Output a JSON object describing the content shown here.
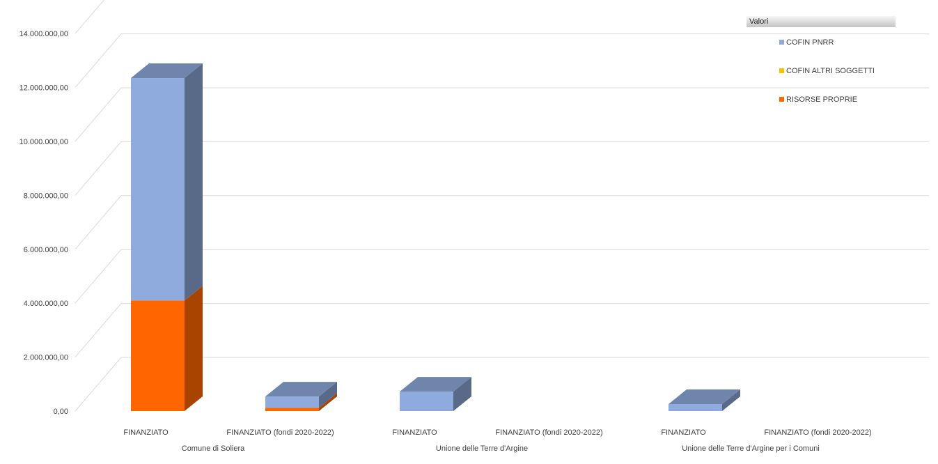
{
  "chart_data": {
    "type": "bar",
    "stacked": true,
    "three_d": true,
    "legend_title": "Valori",
    "legend_position": "top-right",
    "grid": true,
    "ylim": [
      0,
      14000000
    ],
    "y_ticks": [
      "0,00",
      "2.000.000,00",
      "4.000.000,00",
      "6.000.000,00",
      "8.000.000,00",
      "10.000.000,00",
      "12.000.000,00",
      "14.000.000,00"
    ],
    "groups": [
      "Comune di Soliera",
      "Unione delle Terre d'Argine",
      "Unione delle Terre d'Argine per i Comuni"
    ],
    "categories": [
      "FINANZIATO",
      "FINANZIATO (fondi 2020-2022)",
      "FINANZIATO",
      "FINANZIATO (fondi 2020-2022)",
      "FINANZIATO",
      "FINANZIATO (fondi 2020-2022)"
    ],
    "series": [
      {
        "name": "RISORSE PROPRIE",
        "color": "#ff6600",
        "values": [
          4100000,
          120000,
          0,
          0,
          0,
          0
        ]
      },
      {
        "name": "COFIN ALTRI SOGGETTI",
        "color": "#ffc000",
        "values": [
          0,
          0,
          0,
          0,
          0,
          0
        ]
      },
      {
        "name": "COFIN PNRR",
        "color": "#8faadc",
        "values": [
          8250000,
          420000,
          720000,
          0,
          260000,
          0
        ]
      }
    ],
    "legend_order": [
      "COFIN PNRR",
      "COFIN ALTRI SOGGETTI",
      "RISORSE PROPRIE"
    ]
  }
}
